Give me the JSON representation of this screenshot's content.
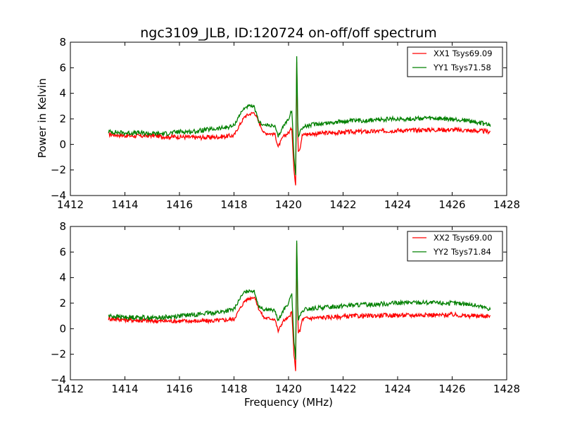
{
  "title": "ngc3109_JLB, ID:120724 on-off/off spectrum",
  "ylabel": "Power in Kelvin",
  "xlabel": "Frequency (MHz)",
  "colors": {
    "red": "#ff0000",
    "green": "#008000"
  },
  "chart_data": [
    {
      "type": "line",
      "xlim": [
        1412,
        1428
      ],
      "ylim": [
        -4,
        8
      ],
      "xticks": [
        "1412",
        "1414",
        "1416",
        "1418",
        "1420",
        "1422",
        "1424",
        "1426",
        "1428"
      ],
      "yticks": [
        "−4",
        "−2",
        "0",
        "2",
        "4",
        "6",
        "8"
      ],
      "legend_position": "top-right",
      "series": [
        {
          "name": "XX1 Tsys69.09",
          "color": "#ff0000",
          "x": [
            1413.4,
            1414.0,
            1414.5,
            1415.0,
            1415.5,
            1416.0,
            1416.5,
            1417.0,
            1417.5,
            1418.0,
            1418.2,
            1418.4,
            1418.6,
            1418.75,
            1418.9,
            1419.1,
            1419.3,
            1419.5,
            1419.62,
            1419.8,
            1420.0,
            1420.12,
            1420.2,
            1420.26,
            1420.3,
            1420.35,
            1420.42,
            1420.5,
            1420.6,
            1421.0,
            1421.5,
            1422.0,
            1422.5,
            1423.0,
            1423.5,
            1424.0,
            1424.5,
            1425.0,
            1425.5,
            1426.0,
            1426.5,
            1427.0,
            1427.4
          ],
          "y": [
            0.8,
            0.7,
            0.65,
            0.7,
            0.6,
            0.6,
            0.55,
            0.55,
            0.6,
            0.7,
            1.5,
            2.2,
            2.4,
            2.5,
            1.8,
            0.9,
            0.85,
            0.8,
            -0.2,
            0.6,
            0.9,
            1.3,
            -2.0,
            -3.3,
            6.5,
            -0.5,
            -0.3,
            0.7,
            0.8,
            0.85,
            0.9,
            0.95,
            1.0,
            1.0,
            1.05,
            1.1,
            1.1,
            1.15,
            1.15,
            1.15,
            1.1,
            1.05,
            1.0
          ]
        },
        {
          "name": "YY1 Tsys71.58",
          "color": "#008000",
          "x": [
            1413.4,
            1414.0,
            1414.5,
            1415.0,
            1415.5,
            1416.0,
            1416.5,
            1417.0,
            1417.5,
            1418.0,
            1418.2,
            1418.4,
            1418.6,
            1418.75,
            1418.9,
            1419.1,
            1419.3,
            1419.5,
            1419.62,
            1419.8,
            1420.0,
            1420.12,
            1420.2,
            1420.26,
            1420.3,
            1420.35,
            1420.42,
            1420.5,
            1420.6,
            1421.0,
            1421.5,
            1422.0,
            1422.5,
            1423.0,
            1423.5,
            1424.0,
            1424.5,
            1425.0,
            1425.5,
            1426.0,
            1426.5,
            1427.0,
            1427.4
          ],
          "y": [
            1.0,
            0.9,
            0.9,
            0.85,
            0.85,
            1.0,
            1.0,
            1.15,
            1.25,
            1.45,
            2.3,
            2.9,
            3.0,
            2.9,
            1.8,
            1.5,
            1.5,
            1.4,
            0.6,
            1.4,
            2.0,
            2.7,
            -1.0,
            -2.5,
            6.9,
            0.6,
            1.0,
            1.3,
            1.4,
            1.6,
            1.7,
            1.8,
            1.85,
            1.9,
            1.95,
            2.0,
            2.0,
            2.05,
            2.0,
            1.95,
            1.9,
            1.7,
            1.5
          ]
        }
      ]
    },
    {
      "type": "line",
      "xlim": [
        1412,
        1428
      ],
      "ylim": [
        -4,
        8
      ],
      "xticks": [
        "1412",
        "1414",
        "1416",
        "1418",
        "1420",
        "1422",
        "1424",
        "1426",
        "1428"
      ],
      "yticks": [
        "−4",
        "−2",
        "0",
        "2",
        "4",
        "6",
        "8"
      ],
      "legend_position": "top-right",
      "series": [
        {
          "name": "XX2 Tsys69.00",
          "color": "#ff0000",
          "x": [
            1413.4,
            1414.0,
            1414.5,
            1415.0,
            1415.5,
            1416.0,
            1416.5,
            1417.0,
            1417.5,
            1418.0,
            1418.2,
            1418.4,
            1418.6,
            1418.75,
            1418.9,
            1419.1,
            1419.3,
            1419.5,
            1419.62,
            1419.8,
            1420.0,
            1420.12,
            1420.2,
            1420.26,
            1420.3,
            1420.35,
            1420.42,
            1420.5,
            1420.6,
            1421.0,
            1421.5,
            1422.0,
            1422.5,
            1423.0,
            1423.5,
            1424.0,
            1424.5,
            1425.0,
            1425.5,
            1426.0,
            1426.5,
            1427.0,
            1427.4
          ],
          "y": [
            0.8,
            0.7,
            0.65,
            0.6,
            0.6,
            0.6,
            0.6,
            0.6,
            0.65,
            0.75,
            1.5,
            2.2,
            2.4,
            2.5,
            1.6,
            0.85,
            0.8,
            0.75,
            -0.2,
            0.6,
            0.85,
            1.3,
            -2.0,
            -3.4,
            6.6,
            -0.3,
            -0.2,
            0.7,
            0.8,
            0.85,
            0.9,
            0.95,
            1.0,
            1.0,
            1.05,
            1.05,
            1.05,
            1.1,
            1.05,
            1.1,
            1.0,
            1.0,
            1.0
          ]
        },
        {
          "name": "YY2 Tsys71.84",
          "color": "#008000",
          "x": [
            1413.4,
            1414.0,
            1414.5,
            1415.0,
            1415.5,
            1416.0,
            1416.5,
            1417.0,
            1417.5,
            1418.0,
            1418.2,
            1418.4,
            1418.6,
            1418.75,
            1418.9,
            1419.1,
            1419.3,
            1419.5,
            1419.62,
            1419.8,
            1420.0,
            1420.12,
            1420.2,
            1420.26,
            1420.3,
            1420.35,
            1420.42,
            1420.5,
            1420.6,
            1421.0,
            1421.5,
            1422.0,
            1422.5,
            1423.0,
            1423.5,
            1424.0,
            1424.5,
            1425.0,
            1425.5,
            1426.0,
            1426.5,
            1427.0,
            1427.4
          ],
          "y": [
            1.0,
            0.9,
            0.9,
            0.85,
            0.9,
            1.0,
            1.1,
            1.2,
            1.3,
            1.5,
            2.3,
            2.9,
            3.0,
            2.9,
            1.8,
            1.5,
            1.5,
            1.4,
            0.6,
            1.4,
            2.0,
            2.7,
            -1.0,
            -2.5,
            7.0,
            0.6,
            1.0,
            1.3,
            1.5,
            1.6,
            1.7,
            1.8,
            1.85,
            1.9,
            1.95,
            2.0,
            2.05,
            2.05,
            2.0,
            2.0,
            1.95,
            1.75,
            1.55
          ]
        }
      ]
    }
  ]
}
